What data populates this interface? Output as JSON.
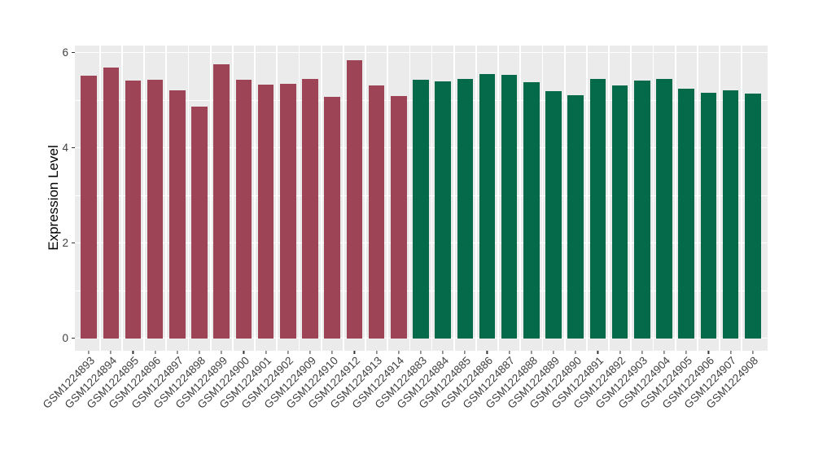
{
  "figure": {
    "background": "#FFFFFF",
    "panel_background": "#EBEBEB",
    "grid_color": "#FFFFFF",
    "axis_tick_color": "#333333",
    "axis_text_color": "#404040",
    "axis_title_color": "#000000"
  },
  "chart_data": {
    "type": "bar",
    "title": "",
    "xlabel": "",
    "ylabel": "Expression Level",
    "ylim": [
      0,
      6.2
    ],
    "yticks": [
      0,
      2,
      4,
      6
    ],
    "yticks_minor": [
      1,
      3,
      5
    ],
    "grid": "on",
    "legend": "none",
    "x_tick_rotation_deg": 45,
    "group_colors": {
      "left": "#9D4456",
      "right": "#046A4A"
    },
    "bars": [
      {
        "label": "GSM1224893",
        "value": 5.51,
        "group": "left"
      },
      {
        "label": "GSM1224894",
        "value": 5.68,
        "group": "left"
      },
      {
        "label": "GSM1224895",
        "value": 5.41,
        "group": "left"
      },
      {
        "label": "GSM1224896",
        "value": 5.42,
        "group": "left"
      },
      {
        "label": "GSM1224897",
        "value": 5.21,
        "group": "left"
      },
      {
        "label": "GSM1224898",
        "value": 4.86,
        "group": "left"
      },
      {
        "label": "GSM1224899",
        "value": 5.75,
        "group": "left"
      },
      {
        "label": "GSM1224900",
        "value": 5.42,
        "group": "left"
      },
      {
        "label": "GSM1224901",
        "value": 5.32,
        "group": "left"
      },
      {
        "label": "GSM1224902",
        "value": 5.35,
        "group": "left"
      },
      {
        "label": "GSM1224909",
        "value": 5.44,
        "group": "left"
      },
      {
        "label": "GSM1224910",
        "value": 5.07,
        "group": "left"
      },
      {
        "label": "GSM1224912",
        "value": 5.84,
        "group": "left"
      },
      {
        "label": "GSM1224913",
        "value": 5.3,
        "group": "left"
      },
      {
        "label": "GSM1224914",
        "value": 5.08,
        "group": "left"
      },
      {
        "label": "GSM1224883",
        "value": 5.42,
        "group": "right"
      },
      {
        "label": "GSM1224884",
        "value": 5.39,
        "group": "right"
      },
      {
        "label": "GSM1224885",
        "value": 5.44,
        "group": "right"
      },
      {
        "label": "GSM1224886",
        "value": 5.54,
        "group": "right"
      },
      {
        "label": "GSM1224887",
        "value": 5.53,
        "group": "right"
      },
      {
        "label": "GSM1224888",
        "value": 5.37,
        "group": "right"
      },
      {
        "label": "GSM1224889",
        "value": 5.18,
        "group": "right"
      },
      {
        "label": "GSM1224890",
        "value": 5.1,
        "group": "right"
      },
      {
        "label": "GSM1224891",
        "value": 5.45,
        "group": "right"
      },
      {
        "label": "GSM1224892",
        "value": 5.31,
        "group": "right"
      },
      {
        "label": "GSM1224903",
        "value": 5.41,
        "group": "right"
      },
      {
        "label": "GSM1224904",
        "value": 5.44,
        "group": "right"
      },
      {
        "label": "GSM1224905",
        "value": 5.24,
        "group": "right"
      },
      {
        "label": "GSM1224906",
        "value": 5.16,
        "group": "right"
      },
      {
        "label": "GSM1224907",
        "value": 5.21,
        "group": "right"
      },
      {
        "label": "GSM1224908",
        "value": 5.14,
        "group": "right"
      }
    ]
  }
}
